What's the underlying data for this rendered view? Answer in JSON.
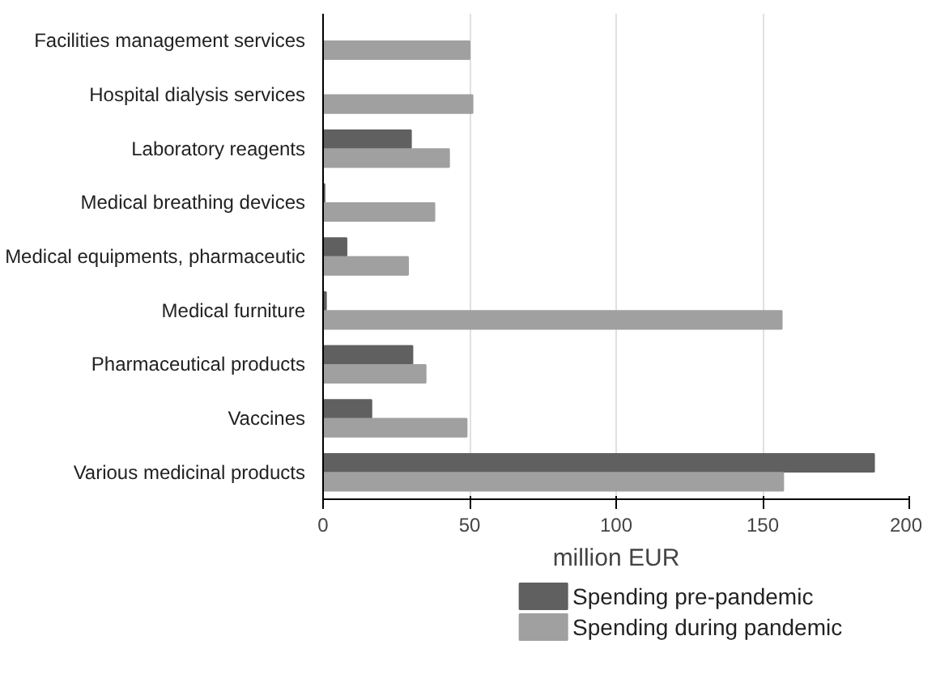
{
  "chart_data": {
    "type": "bar",
    "orientation": "horizontal",
    "xlabel": "million EUR",
    "categories": [
      "Facilities management services",
      "Hospital dialysis services",
      "Laboratory reagents",
      "Medical breathing devices",
      "Medical equipments, pharmaceutic",
      "Medical furniture",
      "Pharmaceutical products",
      "Vaccines",
      "Various medicinal products"
    ],
    "series": [
      {
        "name": "Spending pre-pandemic",
        "color": "#606060",
        "values": [
          0,
          0,
          30,
          0.5,
          8,
          1,
          30.5,
          16.5,
          188
        ]
      },
      {
        "name": "Spending during pandemic",
        "color": "#a0a0a0",
        "values": [
          50,
          51,
          43,
          38,
          29,
          156.5,
          35,
          49,
          157
        ]
      }
    ],
    "xlim": [
      0,
      200
    ],
    "xticks": [
      0,
      50,
      100,
      150,
      200
    ],
    "grid": "x",
    "legend": "bottom"
  }
}
